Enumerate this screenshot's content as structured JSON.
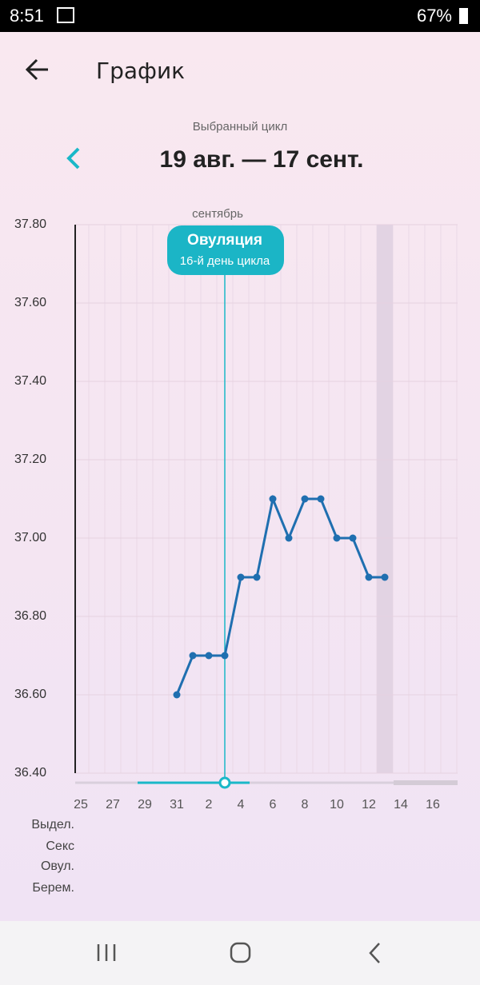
{
  "status_bar": {
    "time": "8:51",
    "battery": "67%"
  },
  "header": {
    "title": "График"
  },
  "cycle": {
    "caption": "Выбранный цикл",
    "range": "19 авг. — 17 сент."
  },
  "chart_data": {
    "type": "line",
    "month_label": "сентябрь",
    "annotation": {
      "title": "Овуляция",
      "subtitle": "16-й день цикла"
    },
    "categories": [
      "25",
      null,
      "27",
      null,
      "29",
      null,
      "31",
      null,
      "2",
      null,
      "4",
      null,
      "6",
      null,
      "8",
      null,
      "10",
      null,
      "12",
      null,
      "14",
      null,
      "16",
      null
    ],
    "values": [
      null,
      null,
      null,
      null,
      null,
      null,
      36.6,
      36.7,
      36.7,
      36.7,
      36.9,
      36.9,
      37.1,
      37.0,
      37.1,
      37.1,
      37.0,
      37.0,
      36.9,
      36.9,
      null,
      null,
      null,
      null
    ],
    "color": "#1f6fb0",
    "ylim": [
      36.4,
      37.8
    ],
    "yticks": [
      {
        "value": 36.4,
        "label": "36.40"
      },
      {
        "value": 36.6,
        "label": "36.60"
      },
      {
        "value": 36.8,
        "label": "36.80"
      },
      {
        "value": 37.0,
        "label": "37.00"
      },
      {
        "value": 37.2,
        "label": "37.20"
      },
      {
        "value": 37.4,
        "label": "37.40"
      },
      {
        "value": 37.6,
        "label": "37.60"
      },
      {
        "value": 37.8,
        "label": "37.80"
      }
    ],
    "grid": true
  },
  "tracks": {
    "labels": [
      "Выдел.",
      "Секс",
      "Овул.",
      "Берем."
    ]
  }
}
